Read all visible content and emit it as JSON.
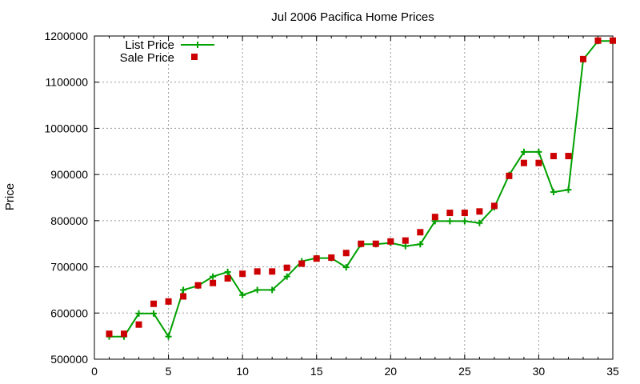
{
  "chart_data": {
    "type": "line",
    "title": "Jul 2006 Pacifica Home Prices",
    "xlabel": "",
    "ylabel": "Price",
    "xlim": [
      0,
      35
    ],
    "ylim": [
      500000,
      1200000
    ],
    "grid": true,
    "legend_position": "top-left",
    "x_ticks": [
      0,
      5,
      10,
      15,
      20,
      25,
      30,
      35
    ],
    "y_ticks": [
      500000,
      600000,
      700000,
      800000,
      900000,
      1000000,
      1100000,
      1200000
    ],
    "series": [
      {
        "name": "List Price",
        "style": "line-plus",
        "color": "#00a000",
        "x": [
          1,
          2,
          3,
          4,
          5,
          6,
          7,
          8,
          9,
          10,
          11,
          12,
          13,
          14,
          15,
          16,
          17,
          18,
          19,
          20,
          21,
          22,
          23,
          24,
          25,
          26,
          27,
          28,
          29,
          30,
          31,
          32,
          33,
          34,
          35
        ],
        "y": [
          549000,
          549000,
          599000,
          599000,
          549000,
          650000,
          659000,
          679000,
          689000,
          639000,
          650000,
          650000,
          679000,
          712000,
          719000,
          719000,
          699000,
          749000,
          749000,
          752000,
          745000,
          749000,
          799000,
          799000,
          799000,
          795000,
          829000,
          899000,
          949000,
          949000,
          862000,
          867000,
          1149000,
          1189000,
          1189000
        ]
      },
      {
        "name": "Sale Price",
        "style": "square-points",
        "color": "#cc0000",
        "x": [
          1,
          2,
          3,
          4,
          5,
          6,
          7,
          8,
          9,
          10,
          11,
          12,
          13,
          14,
          15,
          16,
          17,
          18,
          19,
          20,
          21,
          22,
          23,
          24,
          25,
          26,
          27,
          28,
          29,
          30,
          31,
          32,
          33,
          34,
          35
        ],
        "y": [
          555000,
          555000,
          575000,
          620000,
          625000,
          636000,
          660000,
          665000,
          675000,
          685000,
          690000,
          690000,
          698000,
          707000,
          718000,
          720000,
          730000,
          750000,
          750000,
          755000,
          757000,
          775000,
          808000,
          817000,
          817000,
          820000,
          832000,
          897000,
          925000,
          925000,
          940000,
          940000,
          1150000,
          1190000,
          1190000
        ]
      }
    ]
  }
}
